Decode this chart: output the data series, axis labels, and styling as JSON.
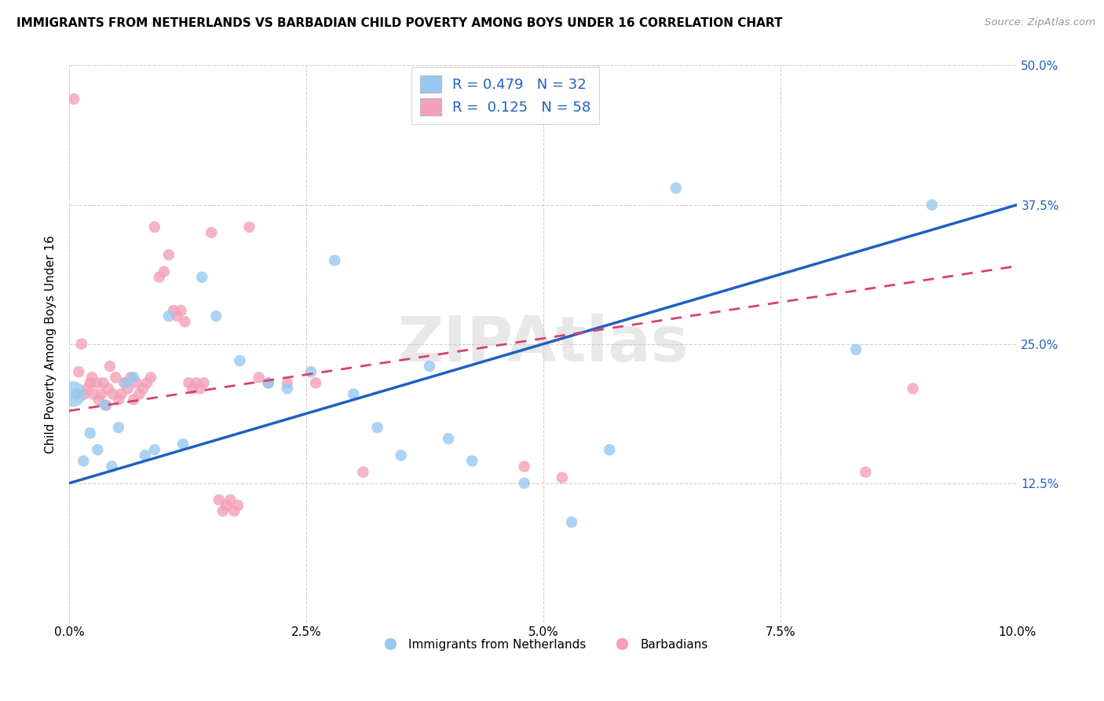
{
  "title": "IMMIGRANTS FROM NETHERLANDS VS BARBADIAN CHILD POVERTY AMONG BOYS UNDER 16 CORRELATION CHART",
  "source": "Source: ZipAtlas.com",
  "ylabel": "Child Poverty Among Boys Under 16",
  "x_ticks": [
    0.0,
    2.5,
    5.0,
    7.5,
    10.0
  ],
  "x_ticklabels": [
    "0.0%",
    "2.5%",
    "5.0%",
    "7.5%",
    "10.0%"
  ],
  "y_ticks_right": [
    0.0,
    12.5,
    25.0,
    37.5,
    50.0
  ],
  "y_ticklabels_right": [
    "",
    "12.5%",
    "25.0%",
    "37.5%",
    "50.0%"
  ],
  "xlim": [
    0.0,
    10.0
  ],
  "ylim": [
    0.0,
    50.0
  ],
  "legend_labels": [
    "Immigrants from Netherlands",
    "Barbadians"
  ],
  "blue_R": 0.479,
  "blue_N": 32,
  "pink_R": 0.125,
  "pink_N": 58,
  "blue_color": "#96c8f0",
  "pink_color": "#f4a0b8",
  "blue_line_color": "#2060c0",
  "pink_line_color": "#d84070",
  "blue_line_y0": 12.5,
  "blue_line_y1": 37.5,
  "pink_line_y0": 19.0,
  "pink_line_y1": 32.0,
  "watermark": "ZIPAtlas",
  "blue_scatter": [
    [
      0.08,
      20.5
    ],
    [
      0.15,
      14.5
    ],
    [
      0.22,
      17.0
    ],
    [
      0.3,
      15.5
    ],
    [
      0.38,
      19.5
    ],
    [
      0.45,
      14.0
    ],
    [
      0.52,
      17.5
    ],
    [
      0.6,
      21.5
    ],
    [
      0.68,
      22.0
    ],
    [
      0.8,
      15.0
    ],
    [
      0.9,
      15.5
    ],
    [
      1.05,
      27.5
    ],
    [
      1.2,
      16.0
    ],
    [
      1.4,
      31.0
    ],
    [
      1.55,
      27.5
    ],
    [
      1.8,
      23.5
    ],
    [
      2.1,
      21.5
    ],
    [
      2.3,
      21.0
    ],
    [
      2.55,
      22.5
    ],
    [
      2.8,
      32.5
    ],
    [
      3.0,
      20.5
    ],
    [
      3.25,
      17.5
    ],
    [
      3.5,
      15.0
    ],
    [
      3.8,
      23.0
    ],
    [
      4.0,
      16.5
    ],
    [
      4.25,
      14.5
    ],
    [
      4.8,
      12.5
    ],
    [
      5.3,
      9.0
    ],
    [
      5.7,
      15.5
    ],
    [
      6.4,
      39.0
    ],
    [
      8.3,
      24.5
    ],
    [
      9.1,
      37.5
    ]
  ],
  "pink_scatter": [
    [
      0.05,
      47.0
    ],
    [
      0.1,
      22.5
    ],
    [
      0.13,
      25.0
    ],
    [
      0.16,
      20.5
    ],
    [
      0.19,
      21.0
    ],
    [
      0.22,
      21.5
    ],
    [
      0.24,
      22.0
    ],
    [
      0.26,
      20.5
    ],
    [
      0.29,
      21.5
    ],
    [
      0.31,
      20.0
    ],
    [
      0.34,
      20.5
    ],
    [
      0.36,
      21.5
    ],
    [
      0.39,
      19.5
    ],
    [
      0.41,
      21.0
    ],
    [
      0.43,
      23.0
    ],
    [
      0.46,
      20.5
    ],
    [
      0.49,
      22.0
    ],
    [
      0.52,
      20.0
    ],
    [
      0.55,
      20.5
    ],
    [
      0.58,
      21.5
    ],
    [
      0.62,
      21.0
    ],
    [
      0.65,
      22.0
    ],
    [
      0.68,
      20.0
    ],
    [
      0.71,
      21.5
    ],
    [
      0.74,
      20.5
    ],
    [
      0.78,
      21.0
    ],
    [
      0.82,
      21.5
    ],
    [
      0.86,
      22.0
    ],
    [
      0.9,
      35.5
    ],
    [
      0.95,
      31.0
    ],
    [
      1.0,
      31.5
    ],
    [
      1.05,
      33.0
    ],
    [
      1.1,
      28.0
    ],
    [
      1.14,
      27.5
    ],
    [
      1.18,
      28.0
    ],
    [
      1.22,
      27.0
    ],
    [
      1.26,
      21.5
    ],
    [
      1.3,
      21.0
    ],
    [
      1.34,
      21.5
    ],
    [
      1.38,
      21.0
    ],
    [
      1.42,
      21.5
    ],
    [
      1.5,
      35.0
    ],
    [
      1.58,
      11.0
    ],
    [
      1.62,
      10.0
    ],
    [
      1.66,
      10.5
    ],
    [
      1.7,
      11.0
    ],
    [
      1.74,
      10.0
    ],
    [
      1.78,
      10.5
    ],
    [
      1.9,
      35.5
    ],
    [
      2.0,
      22.0
    ],
    [
      2.1,
      21.5
    ],
    [
      2.3,
      21.5
    ],
    [
      2.6,
      21.5
    ],
    [
      3.1,
      13.5
    ],
    [
      4.8,
      14.0
    ],
    [
      5.2,
      13.0
    ],
    [
      8.4,
      13.5
    ],
    [
      8.9,
      21.0
    ]
  ]
}
